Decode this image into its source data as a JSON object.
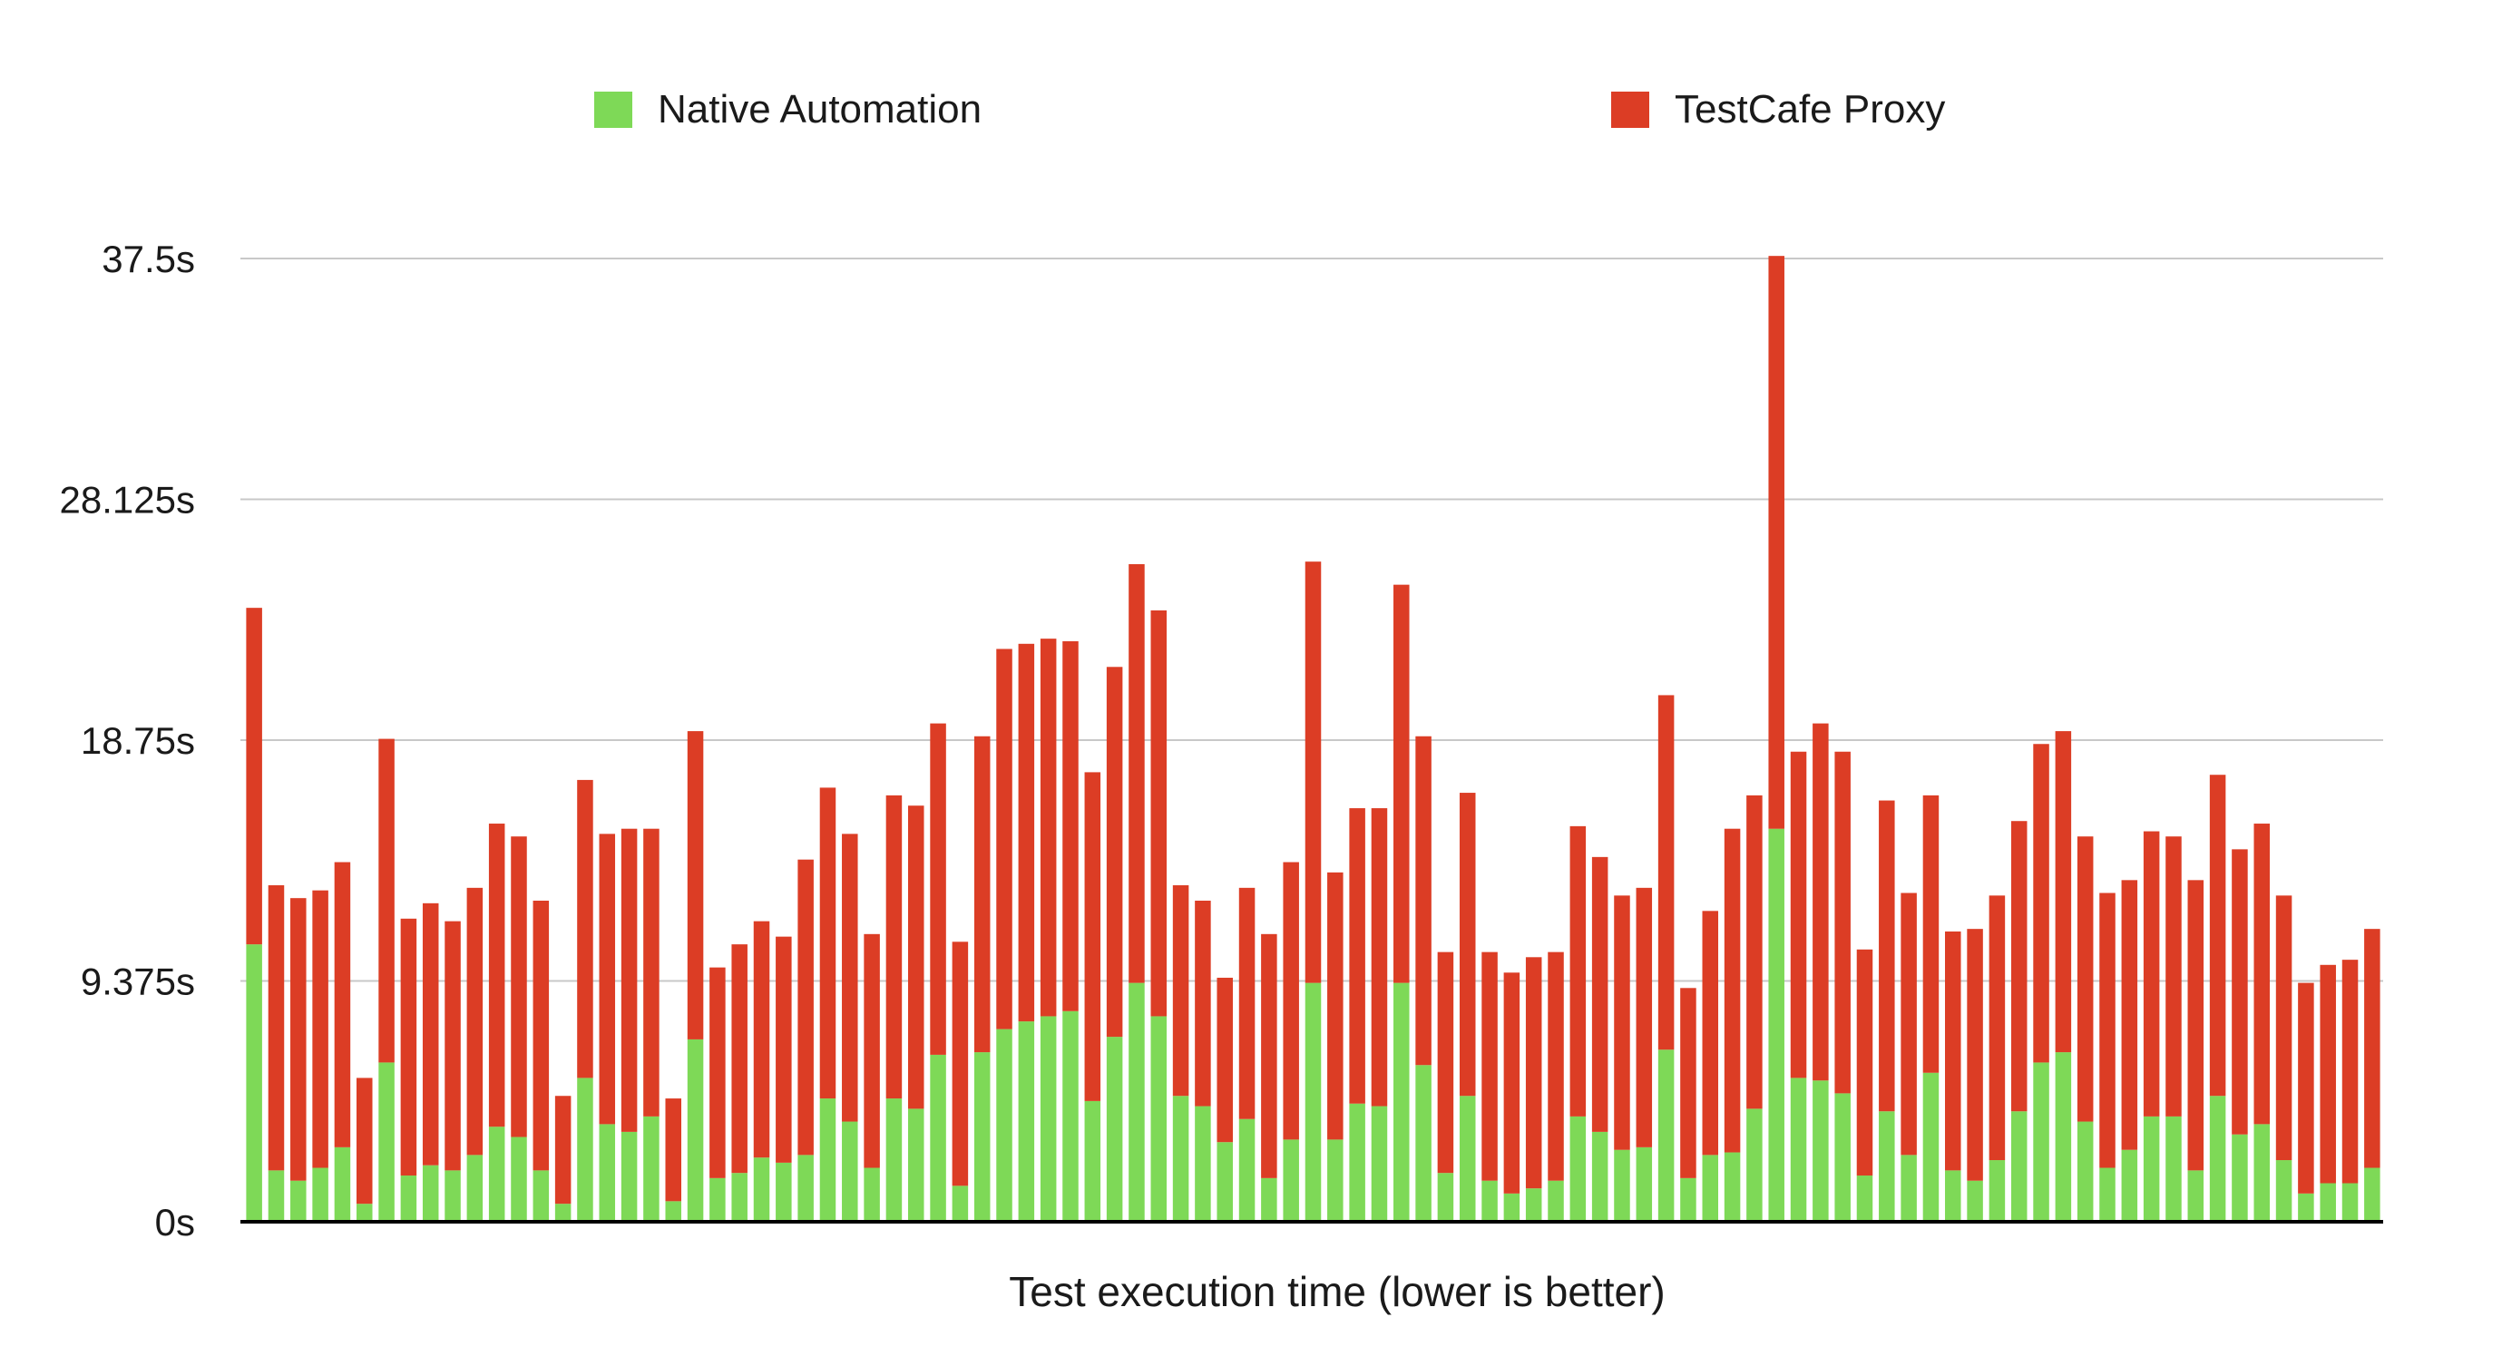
{
  "chart_data": {
    "type": "bar",
    "stacked": true,
    "title": "",
    "xlabel": "Test execution time (lower is better)",
    "ylabel": "",
    "ylim": [
      0,
      37.5
    ],
    "y_ticks": [
      "0s",
      "9.375s",
      "18.75s",
      "28.125s",
      "37.5s"
    ],
    "y_tick_values": [
      0,
      9.375,
      18.75,
      28.125,
      37.5
    ],
    "grid": true,
    "legend_position": "top",
    "series": [
      {
        "name": "Native Automation",
        "color": "#7ED957",
        "values": [
          10.8,
          2.0,
          1.6,
          2.1,
          2.9,
          0.7,
          6.2,
          1.8,
          2.2,
          2.0,
          2.6,
          3.7,
          3.3,
          2.0,
          0.7,
          5.6,
          3.8,
          3.5,
          4.1,
          0.8,
          7.1,
          1.7,
          1.9,
          2.5,
          2.3,
          2.6,
          4.8,
          3.9,
          2.1,
          4.8,
          4.4,
          6.5,
          1.4,
          6.6,
          7.5,
          7.8,
          8.0,
          8.2,
          4.7,
          7.2,
          9.3,
          8.0,
          4.9,
          4.5,
          3.1,
          4.0,
          1.7,
          3.2,
          9.3,
          3.2,
          4.6,
          4.5,
          9.3,
          6.1,
          1.9,
          4.9,
          1.6,
          1.1,
          1.3,
          1.6,
          4.1,
          3.5,
          2.8,
          2.9,
          6.7,
          1.7,
          2.6,
          2.7,
          4.4,
          15.3,
          5.6,
          5.5,
          5.0,
          1.8,
          4.3,
          2.6,
          5.8,
          2.0,
          1.6,
          2.4,
          4.3,
          6.2,
          6.6,
          3.9,
          2.1,
          2.8,
          4.1,
          4.1,
          2.0,
          4.9,
          3.4,
          3.8,
          2.4,
          1.1,
          1.5,
          1.5,
          2.1
        ]
      },
      {
        "name": "TestCafe Proxy",
        "color": "#DC3D25",
        "values": [
          13.1,
          11.1,
          11.0,
          10.8,
          11.1,
          4.9,
          12.6,
          10.0,
          10.2,
          9.7,
          10.4,
          11.8,
          11.7,
          10.5,
          4.2,
          11.6,
          11.3,
          11.8,
          11.2,
          4.0,
          12.0,
          8.2,
          8.9,
          9.2,
          8.8,
          11.5,
          12.1,
          11.2,
          9.1,
          11.8,
          11.8,
          12.9,
          9.5,
          12.3,
          14.8,
          14.7,
          14.7,
          14.4,
          12.8,
          14.4,
          16.3,
          15.8,
          8.2,
          8.0,
          6.4,
          9.0,
          9.5,
          10.8,
          16.4,
          10.4,
          11.5,
          11.6,
          15.5,
          12.8,
          8.6,
          11.8,
          8.9,
          8.6,
          9.0,
          8.9,
          11.3,
          10.7,
          9.9,
          10.1,
          13.8,
          7.4,
          9.5,
          12.6,
          12.2,
          22.3,
          12.7,
          13.9,
          13.3,
          8.8,
          12.1,
          10.2,
          10.8,
          9.3,
          9.8,
          10.3,
          11.3,
          12.4,
          12.5,
          11.1,
          10.7,
          10.5,
          11.1,
          10.9,
          11.3,
          12.5,
          11.1,
          11.7,
          10.3,
          8.2,
          8.5,
          8.7,
          9.3
        ]
      }
    ]
  }
}
